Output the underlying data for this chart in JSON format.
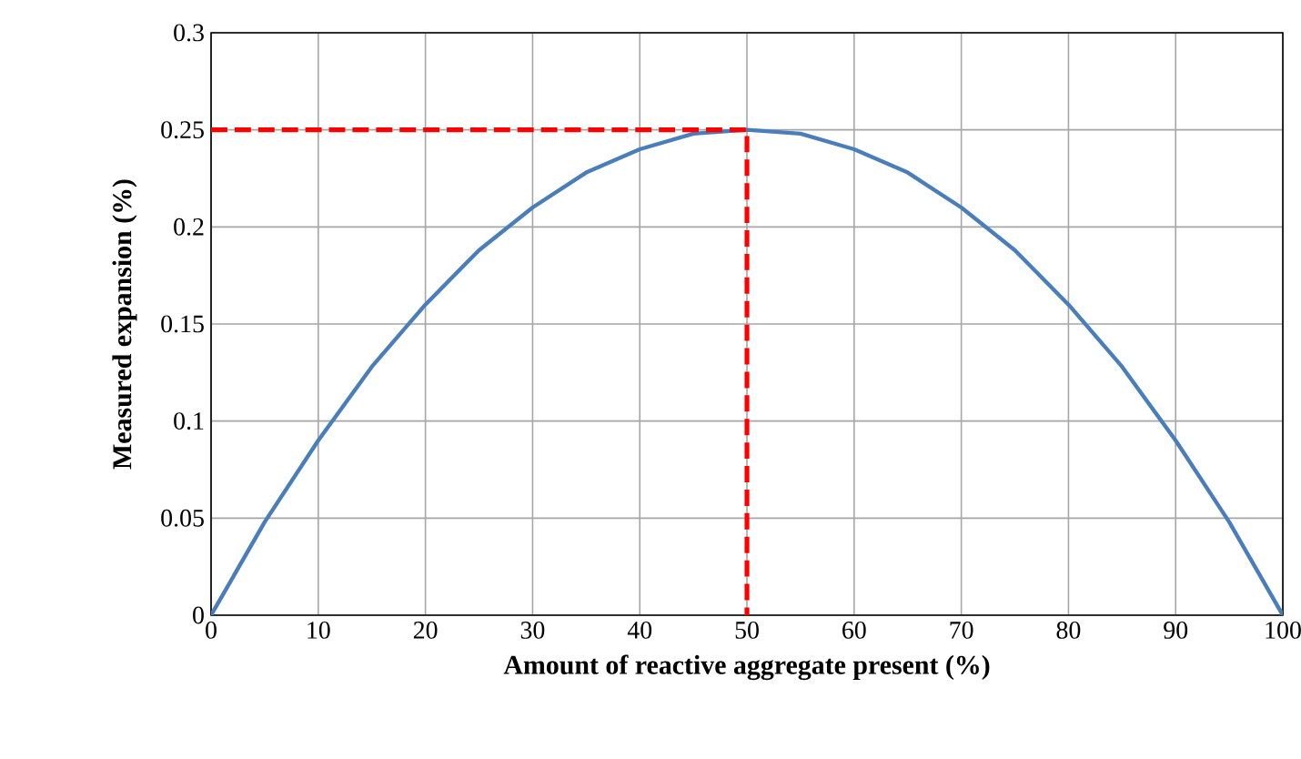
{
  "chart_data": {
    "type": "line",
    "xlabel": "Amount of reactive aggregate present (%)",
    "ylabel": "Measured expansion (%)",
    "xlim": [
      0,
      100
    ],
    "xticks": [
      0,
      10,
      20,
      30,
      40,
      50,
      60,
      70,
      80,
      90,
      100
    ],
    "ylim": [
      0,
      0.3
    ],
    "yticks": [
      0,
      0.05,
      0.1,
      0.15,
      0.2,
      0.25,
      0.3
    ],
    "grid": true,
    "series": [
      {
        "color": "#4a7ebb",
        "line_style": "solid",
        "x": [
          0,
          5,
          10,
          15,
          20,
          25,
          30,
          35,
          40,
          45,
          50,
          55,
          60,
          65,
          70,
          75,
          80,
          85,
          90,
          95,
          100
        ],
        "values": [
          0,
          0.048,
          0.09,
          0.128,
          0.16,
          0.188,
          0.21,
          0.228,
          0.24,
          0.248,
          0.25,
          0.248,
          0.24,
          0.228,
          0.21,
          0.188,
          0.16,
          0.128,
          0.09,
          0.048,
          0
        ]
      },
      {
        "color": "#ff0000",
        "line_style": "dashed",
        "x": [
          0,
          50,
          50
        ],
        "values": [
          0.25,
          0.25,
          0
        ]
      }
    ]
  }
}
